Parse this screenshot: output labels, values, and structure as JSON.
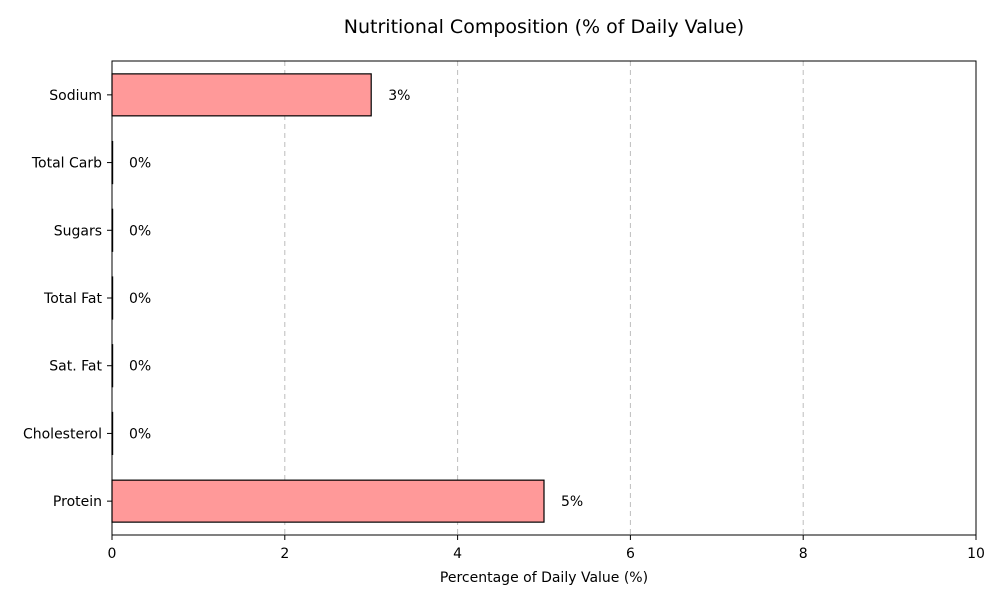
{
  "chart_data": {
    "type": "bar",
    "orientation": "horizontal",
    "title": "Nutritional Composition (% of Daily Value)",
    "xlabel": "Percentage of Daily Value (%)",
    "ylabel": "",
    "categories": [
      "Sodium",
      "Total Carb",
      "Sugars",
      "Total Fat",
      "Sat. Fat",
      "Cholesterol",
      "Protein"
    ],
    "values": [
      3,
      0,
      0,
      0,
      0,
      0,
      5
    ],
    "data_labels": [
      "3%",
      "0%",
      "0%",
      "0%",
      "0%",
      "0%",
      "5%"
    ],
    "xlim": [
      0,
      10
    ],
    "xticks": [
      "0",
      "2",
      "4",
      "6",
      "8",
      "10"
    ],
    "grid": "x-dashed",
    "bar_color": "#ff9999",
    "edge_color": "#000000"
  }
}
